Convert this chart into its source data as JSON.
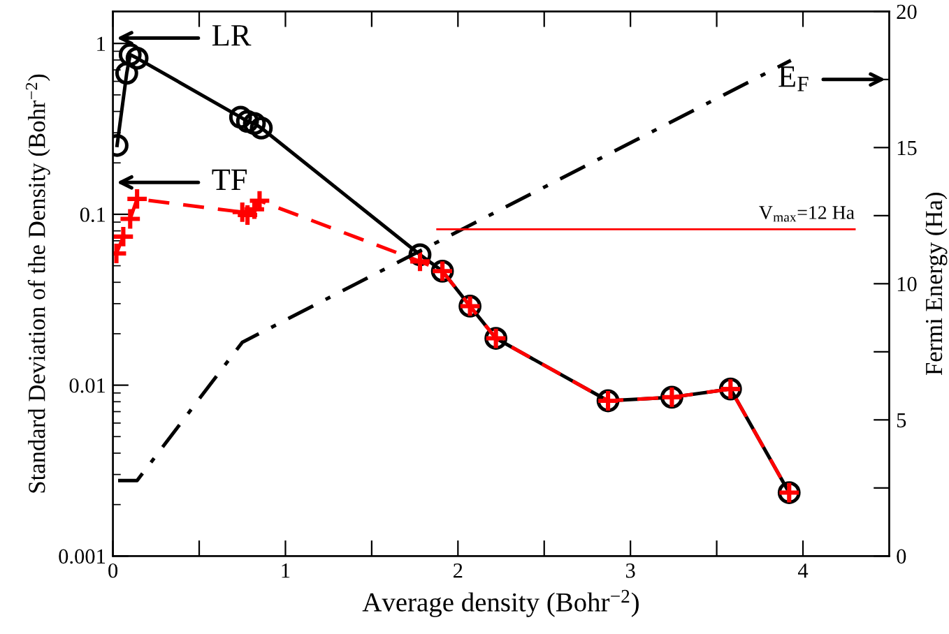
{
  "chart_data": {
    "type": "line",
    "xlabel": "Average density (Bohr$^{−2}$)",
    "ylabel": "Standard Deviation of the Density (Bohr$^{−2}$)",
    "y2label": "Fermi Energy (Ha)",
    "log": "y",
    "grid": false,
    "xlim": [
      0,
      4.5
    ],
    "xticks": [
      0,
      {
        "value": 0.5,
        "label": null
      },
      1,
      {
        "value": 1.5,
        "label": null
      },
      2,
      {
        "value": 2.5,
        "label": null
      },
      3,
      {
        "value": 3.5,
        "label": null
      },
      4
    ],
    "ylim": [
      0.001,
      1.54
    ],
    "yticks": [
      0.001,
      0.01,
      0.1,
      1
    ],
    "y2lim": [
      0,
      20
    ],
    "y2ticks": [
      0,
      {
        "value": 2.5,
        "label": null
      },
      5,
      {
        "value": 7.5,
        "label": null
      },
      10,
      {
        "value": 12.5,
        "label": null
      },
      15,
      {
        "value": 17.5,
        "label": null
      },
      20
    ],
    "series": [
      {
        "color": "#000000",
        "marker": "circle",
        "line_style": "solid",
        "x": [
          0.024,
          0.08,
          0.1,
          0.14,
          0.74,
          0.78,
          0.82,
          0.86,
          1.78,
          1.91,
          2.07,
          2.22,
          2.87,
          3.24,
          3.58,
          3.92
        ],
        "values": [
          0.253,
          0.67,
          0.86,
          0.82,
          0.37,
          0.35,
          0.34,
          0.32,
          0.058,
          0.0465,
          0.029,
          0.0188,
          0.0081,
          0.0085,
          0.0095,
          0.00235
        ]
      },
      {
        "color": "#ff0000",
        "marker": "cross",
        "line_style": "dashed",
        "x": [
          0.02,
          0.06,
          0.1,
          0.14,
          0.75,
          0.78,
          0.82,
          0.85,
          1.78,
          1.91,
          2.07,
          2.22,
          2.87,
          3.24,
          3.58,
          3.92
        ],
        "values": [
          0.059,
          0.074,
          0.094,
          0.123,
          0.103,
          0.099,
          0.107,
          0.12,
          0.053,
          0.0465,
          0.029,
          0.0188,
          0.0081,
          0.0085,
          0.0095,
          0.00235
        ]
      },
      {
        "color": "#000000",
        "marker": "none",
        "line_style": "dashdot",
        "axis": "y2",
        "x": [
          0.03,
          0.14,
          0.75,
          3.93
        ],
        "values": [
          2.77,
          2.77,
          7.85,
          18.2
        ]
      },
      {
        "color": "#ff0000",
        "marker": "none",
        "line_style": "solid",
        "axis": "y2",
        "x": [
          1.88,
          4.3
        ],
        "values": [
          12,
          12
        ]
      }
    ],
    "annotations": [
      "LR",
      "TF",
      "E$_{F}$",
      {
        "text": "V$_{max}$=12 Ha",
        "x": 4.3,
        "y": 0.082
      }
    ]
  }
}
